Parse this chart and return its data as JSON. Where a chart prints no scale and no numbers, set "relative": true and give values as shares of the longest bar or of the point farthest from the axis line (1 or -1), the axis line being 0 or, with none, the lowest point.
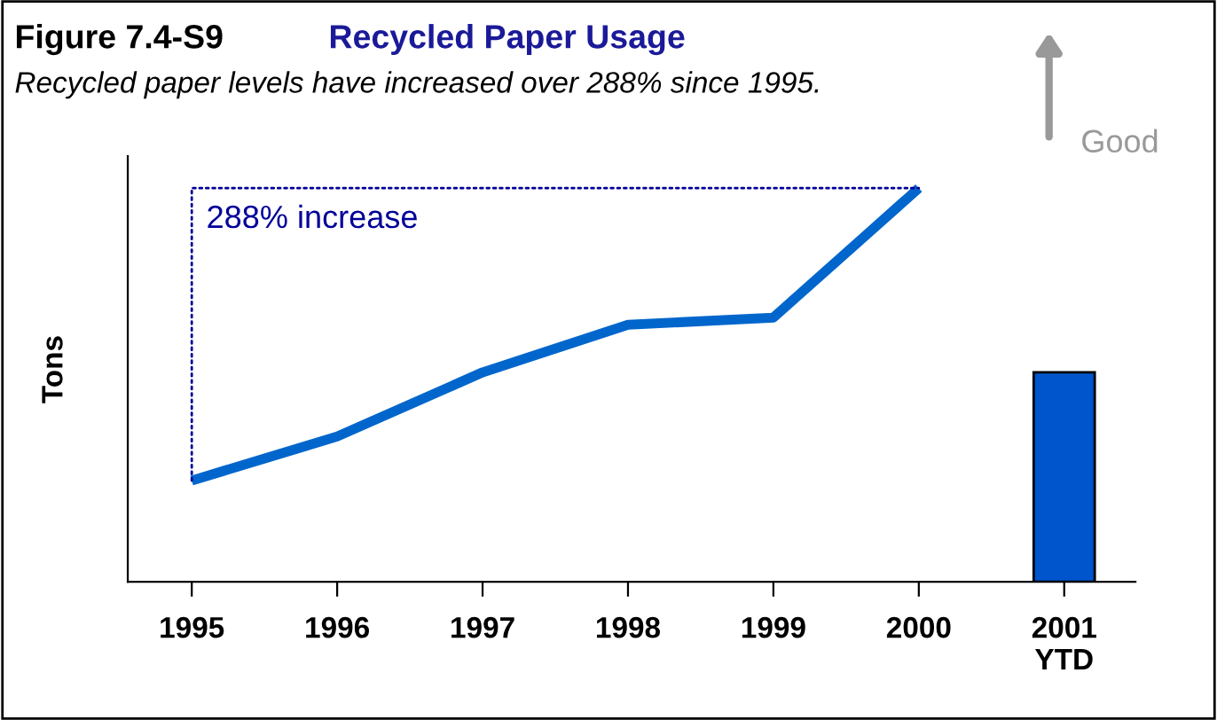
{
  "chart_data": {
    "type": "line",
    "title": "Recycled Paper Usage",
    "subtitle": "Recycled paper levels have increased over 288% since 1995.",
    "ylabel": "Tons",
    "relative": true,
    "categories": [
      "1995",
      "1996",
      "1997",
      "1998",
      "1999",
      "2000",
      "2001\nYTD"
    ],
    "series": [
      {
        "color": "#0066cc",
        "values": [
          0.257,
          0.369,
          0.532,
          0.653,
          0.671,
          1.0,
          null
        ]
      },
      {
        "type": "bar",
        "color": "#0055cc",
        "values": [
          null,
          null,
          null,
          null,
          null,
          null,
          0.532
        ]
      }
    ],
    "annotations": [
      "Figure 7.4-S9",
      "288% increase",
      "Good"
    ],
    "grid": false,
    "legend": false,
    "marker": "none",
    "line_style": "solid"
  }
}
